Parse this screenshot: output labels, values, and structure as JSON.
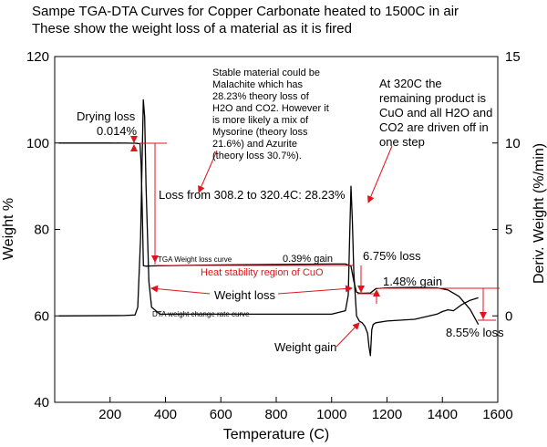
{
  "chart_data": {
    "type": "line",
    "title": "Sampe TGA-DTA Curves for Copper Carbonate heated to 1500C in air",
    "subtitle": "These show the weight loss of a material as it is fired",
    "xlabel": "Temperature (C)",
    "ylabel": "Weight %",
    "ylabel_right": "Deriv. Weight (%/min)",
    "xlim": [
      0,
      1600
    ],
    "ylim": [
      40,
      120
    ],
    "ylim_right": [
      -5,
      15
    ],
    "x_ticks": [
      "200",
      "400",
      "600",
      "800",
      "1000",
      "1200",
      "1400",
      "1600"
    ],
    "y_ticks": [
      "40",
      "60",
      "80",
      "100",
      "120"
    ],
    "y_ticks_right": [
      "0",
      "5",
      "10",
      "15"
    ],
    "grid": false,
    "series": [
      {
        "name": "TGA Weight loss curve",
        "axis": "left",
        "x": [
          15,
          200,
          260,
          290,
          300,
          305,
          308.2,
          312,
          316,
          320.4,
          330,
          350,
          500,
          700,
          900,
          1000,
          1050,
          1070,
          1080,
          1090,
          1100,
          1120,
          1140,
          1150,
          1160,
          1200,
          1300,
          1380,
          1420,
          1460,
          1500,
          1530
        ],
        "values": [
          99.98,
          99.98,
          99.97,
          99.95,
          99.9,
          99.85,
          99.85,
          95,
          85,
          71.62,
          71.5,
          71.55,
          71.7,
          71.85,
          71.95,
          72.0,
          72.0,
          71.5,
          68,
          65.5,
          65.25,
          65.25,
          65.3,
          65.8,
          66.3,
          66.5,
          66.6,
          66.5,
          66.0,
          64.5,
          61.5,
          58.0
        ]
      },
      {
        "name": "DTA weight change rate curve",
        "axis": "right",
        "x": [
          15,
          250,
          290,
          300,
          310,
          320,
          325,
          330,
          340,
          350,
          380,
          500,
          700,
          900,
          1000,
          1050,
          1060,
          1065,
          1070,
          1075,
          1080,
          1090,
          1100,
          1110,
          1120,
          1130,
          1135,
          1140,
          1145,
          1150,
          1160,
          1200,
          1300,
          1380,
          1400,
          1420,
          1440,
          1470,
          1500,
          1530
        ],
        "values": [
          0,
          0.02,
          0.05,
          0.5,
          4.5,
          12.5,
          11.5,
          7.5,
          2,
          0.5,
          0.1,
          0.1,
          0.1,
          0.1,
          0.1,
          0.3,
          1.2,
          4.5,
          7.5,
          5.5,
          2.5,
          0,
          -0.3,
          -0.4,
          -0.6,
          -1,
          -1.8,
          -2.3,
          -0.8,
          -0.5,
          -0.4,
          -0.3,
          -0.2,
          0.1,
          0.25,
          0.35,
          0.3,
          0.65,
          0.9,
          1.05
        ]
      }
    ],
    "annotations": [
      {
        "text": "Drying loss",
        "color": "#000000"
      },
      {
        "text": "0.014%",
        "color": "#000000"
      },
      {
        "lines": [
          "Stable material could be",
          "Malachite which has",
          "28.23% theory loss of",
          "H2O and CO2. However it",
          "is more likely a mix of",
          "Mysorine (theory loss",
          "21.6%) and Azurite",
          "(theory loss 30.7%)."
        ],
        "color": "#000000"
      },
      {
        "text": "Loss from 308.2 to 320.4C: 28.23%",
        "color": "#000000"
      },
      {
        "lines": [
          "At 320C the",
          "remaining product is",
          "CuO and all H2O and",
          "CO2 are driven off in",
          "one step"
        ],
        "color": "#000000"
      },
      {
        "text": "TGA Weight loss curve",
        "color": "#000000"
      },
      {
        "text": "0.39% gain",
        "color": "#000000"
      },
      {
        "text": "Heat stability region of CuO",
        "color": "#e0141e"
      },
      {
        "text": "6.75% loss",
        "color": "#000000"
      },
      {
        "text": "1.48% gain",
        "color": "#000000"
      },
      {
        "text": "Weight loss",
        "color": "#000000"
      },
      {
        "text": "DTA weight change rate curve",
        "color": "#000000"
      },
      {
        "text": "Weight gain",
        "color": "#000000"
      },
      {
        "text": "8.55% loss",
        "color": "#000000"
      }
    ],
    "colors": {
      "curves": "#000000",
      "annotation_arrows": "#e0141e",
      "axes": "#000000"
    }
  }
}
